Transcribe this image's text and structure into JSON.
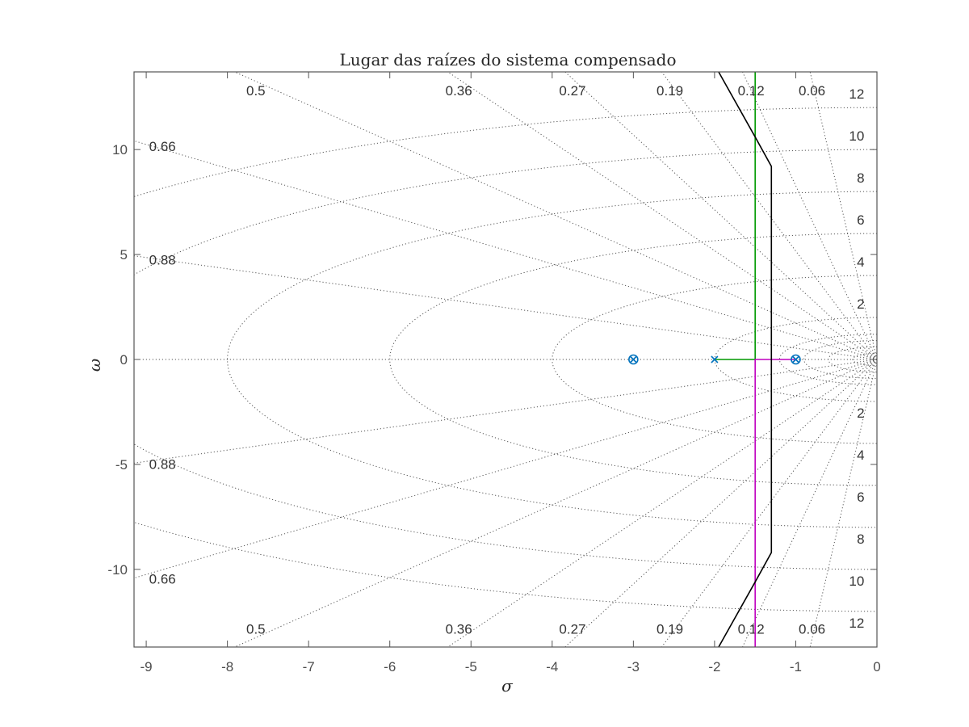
{
  "chart_data": {
    "type": "line",
    "title": "Lugar das raízes do sistema compensado",
    "xlabel": "σ",
    "ylabel": "ω",
    "xlim": [
      -9.15,
      0
    ],
    "ylim": [
      -13.7,
      13.7
    ],
    "x_ticks": [
      "-9",
      "-8",
      "-7",
      "-6",
      "-5",
      "-4",
      "-3",
      "-2",
      "-1",
      "0"
    ],
    "y_ticks": [
      "10",
      "5",
      "0",
      "-5",
      "-10"
    ],
    "x_tick_values": [
      -9,
      -8,
      -7,
      -6,
      -5,
      -4,
      -3,
      -2,
      -1,
      0
    ],
    "y_tick_values": [
      10,
      5,
      0,
      -5,
      -10
    ],
    "grid": true,
    "damping_grid": [
      0.06,
      0.12,
      0.19,
      0.27,
      0.36,
      0.5,
      0.66,
      0.88
    ],
    "frequency_grid": [
      2,
      4,
      6,
      8,
      10,
      12
    ],
    "damping_labels_top": [
      {
        "text": "0.5",
        "x": -7.65,
        "y": 12.75
      },
      {
        "text": "0.36",
        "x": -5.15,
        "y": 12.75
      },
      {
        "text": "0.27",
        "x": -3.75,
        "y": 12.75
      },
      {
        "text": "0.19",
        "x": -2.55,
        "y": 12.75
      },
      {
        "text": "0.12",
        "x": -1.55,
        "y": 12.75
      },
      {
        "text": "0.06",
        "x": -0.8,
        "y": 12.75
      },
      {
        "text": "0.66",
        "x": -8.8,
        "y": 10.1
      },
      {
        "text": "0.88",
        "x": -8.8,
        "y": 4.7
      }
    ],
    "damping_labels_bottom": [
      {
        "text": "0.88",
        "x": -8.8,
        "y": -5.05
      },
      {
        "text": "0.66",
        "x": -8.8,
        "y": -10.5
      },
      {
        "text": "0.5",
        "x": -7.65,
        "y": -12.9
      },
      {
        "text": "0.36",
        "x": -5.15,
        "y": -12.9
      },
      {
        "text": "0.27",
        "x": -3.75,
        "y": -12.9
      },
      {
        "text": "0.19",
        "x": -2.55,
        "y": -12.9
      },
      {
        "text": "0.12",
        "x": -1.55,
        "y": -12.9
      },
      {
        "text": "0.06",
        "x": -0.8,
        "y": -12.9
      }
    ],
    "frequency_labels": [
      {
        "text": "12",
        "x": -0.25,
        "y": 12.6
      },
      {
        "text": "10",
        "x": -0.25,
        "y": 10.6
      },
      {
        "text": "8",
        "x": -0.2,
        "y": 8.6
      },
      {
        "text": "6",
        "x": -0.2,
        "y": 6.6
      },
      {
        "text": "4",
        "x": -0.2,
        "y": 4.6
      },
      {
        "text": "2",
        "x": -0.2,
        "y": 2.6
      },
      {
        "text": "2",
        "x": -0.2,
        "y": -2.6
      },
      {
        "text": "4",
        "x": -0.2,
        "y": -4.6
      },
      {
        "text": "6",
        "x": -0.2,
        "y": -6.6
      },
      {
        "text": "8",
        "x": -0.2,
        "y": -8.6
      },
      {
        "text": "10",
        "x": -0.25,
        "y": -10.6
      },
      {
        "text": "12",
        "x": -0.25,
        "y": -12.6
      }
    ],
    "series": [
      {
        "points": [
          [
            -1.5,
            13.7
          ],
          [
            -1.5,
            0
          ],
          [
            -2,
            0
          ]
        ]
      },
      {
        "points": [
          [
            -1.5,
            -13.7
          ],
          [
            -1.5,
            0
          ],
          [
            -1,
            0
          ]
        ]
      },
      {
        "points": [
          [
            -1.95,
            13.7
          ],
          [
            -1.5,
            10.6
          ],
          [
            -1.3,
            9.2
          ],
          [
            -1.3,
            -9.2
          ],
          [
            -1.5,
            -10.6
          ],
          [
            -1.95,
            -13.7
          ]
        ]
      }
    ],
    "poles": [
      [
        -3,
        0
      ],
      [
        -2,
        0
      ],
      [
        -1,
        0
      ]
    ],
    "zeros": [
      [
        -3,
        0
      ],
      [
        -1,
        0
      ]
    ],
    "colors": {
      "green_branch": "#009900",
      "magenta_branch": "#bf00bf",
      "black_branch": "#000000",
      "markers": "#0072bd",
      "grid": "#555555",
      "axes": "#555555"
    }
  }
}
